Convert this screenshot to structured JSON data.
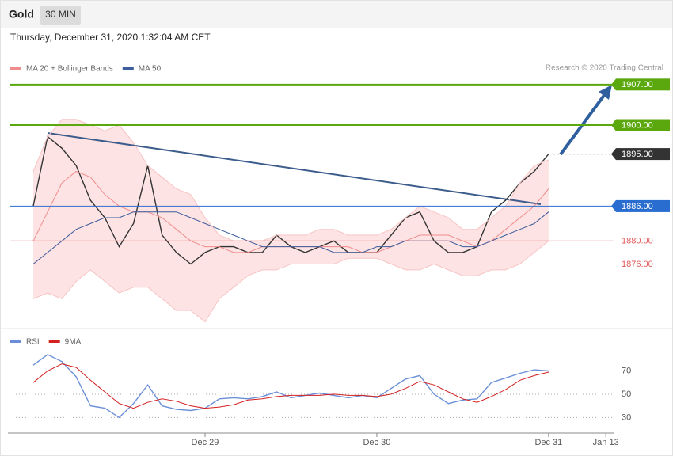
{
  "header": {
    "symbol": "Gold",
    "interval": "30 MIN",
    "timestamp": "Thursday, December 31, 2020 1:32:04 AM CET",
    "credit": "Research © 2020 Trading Central"
  },
  "chart_data": [
    {
      "type": "line",
      "ylim": [
        1865,
        1916
      ],
      "series": [
        {
          "color": "#333333",
          "values": [
            1886,
            1898,
            1896,
            1893,
            1887,
            1884,
            1879,
            1883,
            1893,
            1881,
            1878,
            1876,
            1878,
            1879,
            1879,
            1878,
            1878,
            1881,
            1879,
            1878,
            1879,
            1880,
            1878,
            1878,
            1878,
            1881,
            1884,
            1885,
            1880,
            1878,
            1878,
            1879,
            1885,
            1887,
            1890,
            1892,
            1895,
            null,
            null,
            null,
            null
          ]
        },
        {
          "name": "MA 20 + Bollinger Bands",
          "color": "#f08c8c",
          "values": [
            1880,
            1885,
            1890,
            1892,
            1891,
            1888,
            1886,
            1885,
            1885,
            1884,
            1882,
            1880,
            1879,
            1879,
            1878,
            1878,
            1879,
            1879,
            1879,
            1879,
            1879,
            1879,
            1879,
            1878,
            1878,
            1879,
            1880,
            1881,
            1881,
            1881,
            1880,
            1879,
            1880,
            1882,
            1884,
            1886,
            1889,
            null,
            null,
            null,
            null
          ]
        },
        {
          "name": "MA 50",
          "color": "#3c5c9c",
          "values": [
            1876,
            1878,
            1880,
            1882,
            1883,
            1884,
            1884,
            1885,
            1885,
            1885,
            1885,
            1884,
            1883,
            1882,
            1881,
            1880,
            1879,
            1879,
            1879,
            1879,
            1879,
            1878,
            1878,
            1878,
            1879,
            1879,
            1880,
            1880,
            1880,
            1880,
            1879,
            1879,
            1880,
            1881,
            1882,
            1883,
            1885,
            null,
            null,
            null,
            null
          ]
        },
        {
          "color": "#f7c4c4",
          "band": "upper",
          "values": [
            1892,
            1898,
            1901,
            1901,
            1900,
            1899,
            1900,
            1897,
            1893,
            1891,
            1889,
            1888,
            1884,
            1881,
            1880,
            1880,
            1880,
            1881,
            1881,
            1881,
            1882,
            1882,
            1881,
            1881,
            1881,
            1882,
            1884,
            1886,
            1885,
            1884,
            1882,
            1882,
            1884,
            1886,
            1890,
            1893,
            1894,
            null,
            null,
            null,
            null
          ]
        },
        {
          "color": "#f7c4c4",
          "band": "lower",
          "values": [
            1870,
            1871,
            1870,
            1873,
            1875,
            1873,
            1871,
            1872,
            1872,
            1870,
            1868,
            1868,
            1866,
            1870,
            1872,
            1874,
            1875,
            1875,
            1876,
            1876,
            1876,
            1876,
            1877,
            1877,
            1877,
            1876,
            1875,
            1875,
            1876,
            1875,
            1874,
            1874,
            1875,
            1875,
            1876,
            1878,
            1880,
            null,
            null,
            null,
            null
          ]
        }
      ],
      "levels": [
        {
          "value": 1907,
          "label": "1907.00",
          "color": "#5aa70e",
          "line": "solid",
          "box": true
        },
        {
          "value": 1900,
          "label": "1900.00",
          "color": "#5aa70e",
          "line": "solid",
          "box": true
        },
        {
          "value": 1895,
          "label": "1895.00",
          "color": "#333333",
          "line": "dotted",
          "box": true
        },
        {
          "value": 1886,
          "label": "1886.00",
          "color": "#2a6dd0",
          "line": "solid",
          "box": true
        },
        {
          "value": 1880,
          "label": "1880.00",
          "color": "#e05a5a",
          "line": "solid",
          "box": false
        },
        {
          "value": 1876,
          "label": "1876.00",
          "color": "#e05a5a",
          "line": "solid",
          "box": false
        }
      ]
    },
    {
      "type": "line",
      "ylim": [
        18,
        103
      ],
      "yticks": [
        30,
        50,
        70
      ],
      "grid": "dotted",
      "categories": [
        null,
        null,
        null,
        null,
        null,
        null,
        null,
        null,
        null,
        null,
        null,
        null,
        "Dec 29",
        null,
        null,
        null,
        null,
        null,
        null,
        null,
        null,
        null,
        null,
        null,
        "Dec 30",
        null,
        null,
        null,
        null,
        null,
        null,
        null,
        null,
        null,
        null,
        null,
        "Dec 31",
        null,
        null,
        null,
        "Jan 13"
      ],
      "series": [
        {
          "name": "RSI",
          "color": "#6a8fd8",
          "values": [
            75,
            84,
            78,
            65,
            40,
            38,
            30,
            42,
            58,
            40,
            37,
            36,
            38,
            46,
            47,
            46,
            48,
            52,
            47,
            49,
            51,
            49,
            47,
            49,
            47,
            55,
            63,
            66,
            50,
            42,
            45,
            46,
            60,
            64,
            68,
            71,
            70,
            null,
            null,
            null,
            null
          ]
        },
        {
          "name": "9MA",
          "color": "#d42020",
          "values": [
            60,
            70,
            76,
            73,
            62,
            52,
            42,
            38,
            43,
            46,
            44,
            40,
            38,
            39,
            41,
            45,
            46,
            48,
            49,
            49,
            49,
            50,
            49,
            49,
            48,
            50,
            55,
            61,
            58,
            52,
            46,
            43,
            48,
            54,
            62,
            66,
            69,
            null,
            null,
            null,
            null
          ]
        }
      ]
    }
  ]
}
